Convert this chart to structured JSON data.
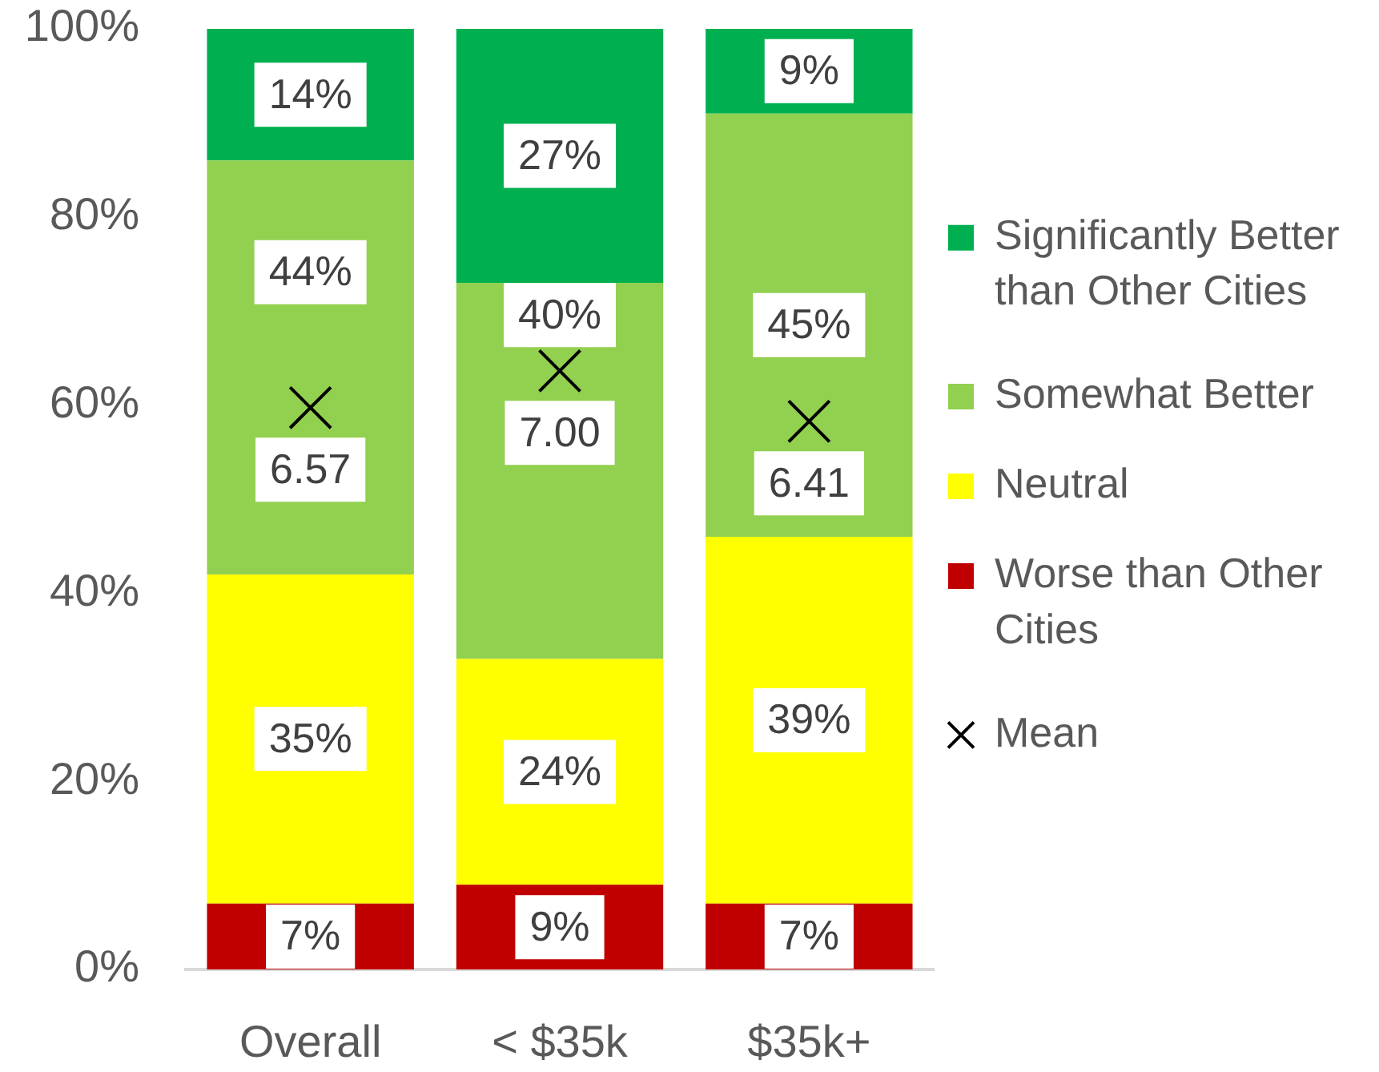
{
  "chart_data": {
    "type": "bar",
    "stacked": true,
    "categories": [
      "Overall",
      "< $35k",
      "$35k+"
    ],
    "series": [
      {
        "name": "Worse than Other Cities",
        "color": "#c00000",
        "values": [
          7,
          9,
          7
        ],
        "value_labels": [
          "7%",
          "9%",
          "7%"
        ]
      },
      {
        "name": "Neutral",
        "color": "#ffff00",
        "values": [
          35,
          24,
          39
        ],
        "value_labels": [
          "35%",
          "24%",
          "39%"
        ]
      },
      {
        "name": "Somewhat Better",
        "color": "#92d050",
        "values": [
          44,
          40,
          45
        ],
        "value_labels": [
          "44%",
          "40%",
          "45%"
        ]
      },
      {
        "name": "Significantly Better than Other Cities",
        "color": "#00b050",
        "values": [
          14,
          27,
          9
        ],
        "value_labels": [
          "14%",
          "27%",
          "9%"
        ]
      },
      {
        "name": "Mean",
        "type": "scatter",
        "color": "#000000",
        "axis": "y2",
        "marker": "cross",
        "x": [
          "Overall",
          "< $35k",
          "$35k+"
        ],
        "values": [
          6.57,
          7.0,
          6.41
        ],
        "value_labels": [
          "6.57",
          "7.00",
          "6.41"
        ]
      }
    ],
    "ylim": [
      0,
      100
    ],
    "yticks": [
      {
        "value": 0,
        "label": "0%"
      },
      {
        "value": 20,
        "label": "20%"
      },
      {
        "value": 40,
        "label": "40%"
      },
      {
        "value": 60,
        "label": "60%"
      },
      {
        "value": 80,
        "label": "80%"
      },
      {
        "value": 100,
        "label": "100%"
      }
    ],
    "y2lim": [
      0,
      11
    ],
    "grid": false,
    "legend": "right"
  }
}
